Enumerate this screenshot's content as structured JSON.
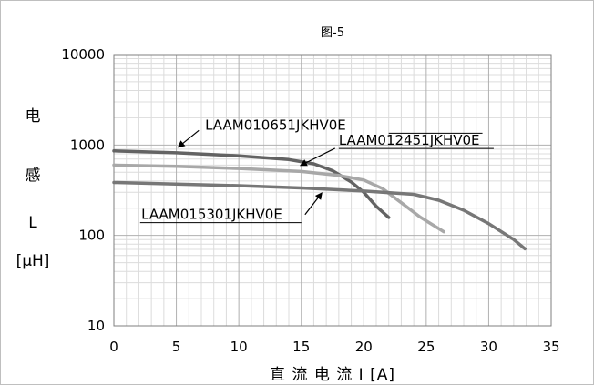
{
  "chart_data": {
    "type": "line",
    "title": "图-5",
    "xlabel": "直 流 电 流 I [A]",
    "ylabel": [
      "电",
      "感",
      "L",
      "[µH]"
    ],
    "xlim": [
      0,
      35
    ],
    "ylim": [
      10,
      10000
    ],
    "y_scale": "log",
    "x_ticks": [
      "0",
      "5",
      "10",
      "15",
      "20",
      "25",
      "30",
      "35"
    ],
    "y_ticks": [
      "10",
      "100",
      "1000",
      "10000"
    ],
    "grid": true,
    "legend": "none",
    "series": [
      {
        "name": "LAAM010651JKHV0E",
        "color": "#636363",
        "x": [
          0,
          5,
          10,
          14,
          16,
          17.5,
          19,
          20,
          21,
          22
        ],
        "y": [
          860,
          820,
          760,
          690,
          620,
          520,
          390,
          300,
          210,
          158
        ]
      },
      {
        "name": "LAAM012451JKHV0E",
        "color": "#a8a8a8",
        "x": [
          0,
          5,
          10,
          15,
          18,
          20,
          21.5,
          23,
          24.5,
          26.4
        ],
        "y": [
          600,
          580,
          550,
          510,
          460,
          410,
          330,
          230,
          160,
          110
        ]
      },
      {
        "name": "LAAM015301JKHV0E",
        "color": "#777777",
        "x": [
          0,
          5,
          10,
          15,
          20,
          24,
          26,
          28,
          30,
          32,
          32.9
        ],
        "y": [
          385,
          370,
          355,
          335,
          310,
          285,
          245,
          190,
          135,
          90,
          71
        ]
      }
    ],
    "annotations": [
      {
        "series": 0,
        "text": "LAAM010651JKHV0E",
        "label_x": 7.3,
        "label_y": 1480,
        "line_start_x": 22,
        "line_end_x": 29.5,
        "arrow_from_x": 6.8,
        "arrow_from_y": 1450,
        "arrow_to_x": 5.2,
        "arrow_to_y": 960
      },
      {
        "series": 1,
        "text": "LAAM012451JKHV0E",
        "label_x": 18.0,
        "label_y": 1005,
        "line_start_x": 18,
        "line_end_x": 30.4,
        "arrow_from_x": 17.7,
        "arrow_from_y": 920,
        "arrow_to_x": 15.0,
        "arrow_to_y": 600
      },
      {
        "series": 2,
        "text": "LAAM015301JKHV0E",
        "label_x": 2.2,
        "label_y": 152,
        "line_start_x": 2.1,
        "line_end_x": 15.0,
        "arrow_from_x": 15.3,
        "arrow_from_y": 170,
        "arrow_to_x": 16.6,
        "arrow_to_y": 290
      }
    ]
  }
}
